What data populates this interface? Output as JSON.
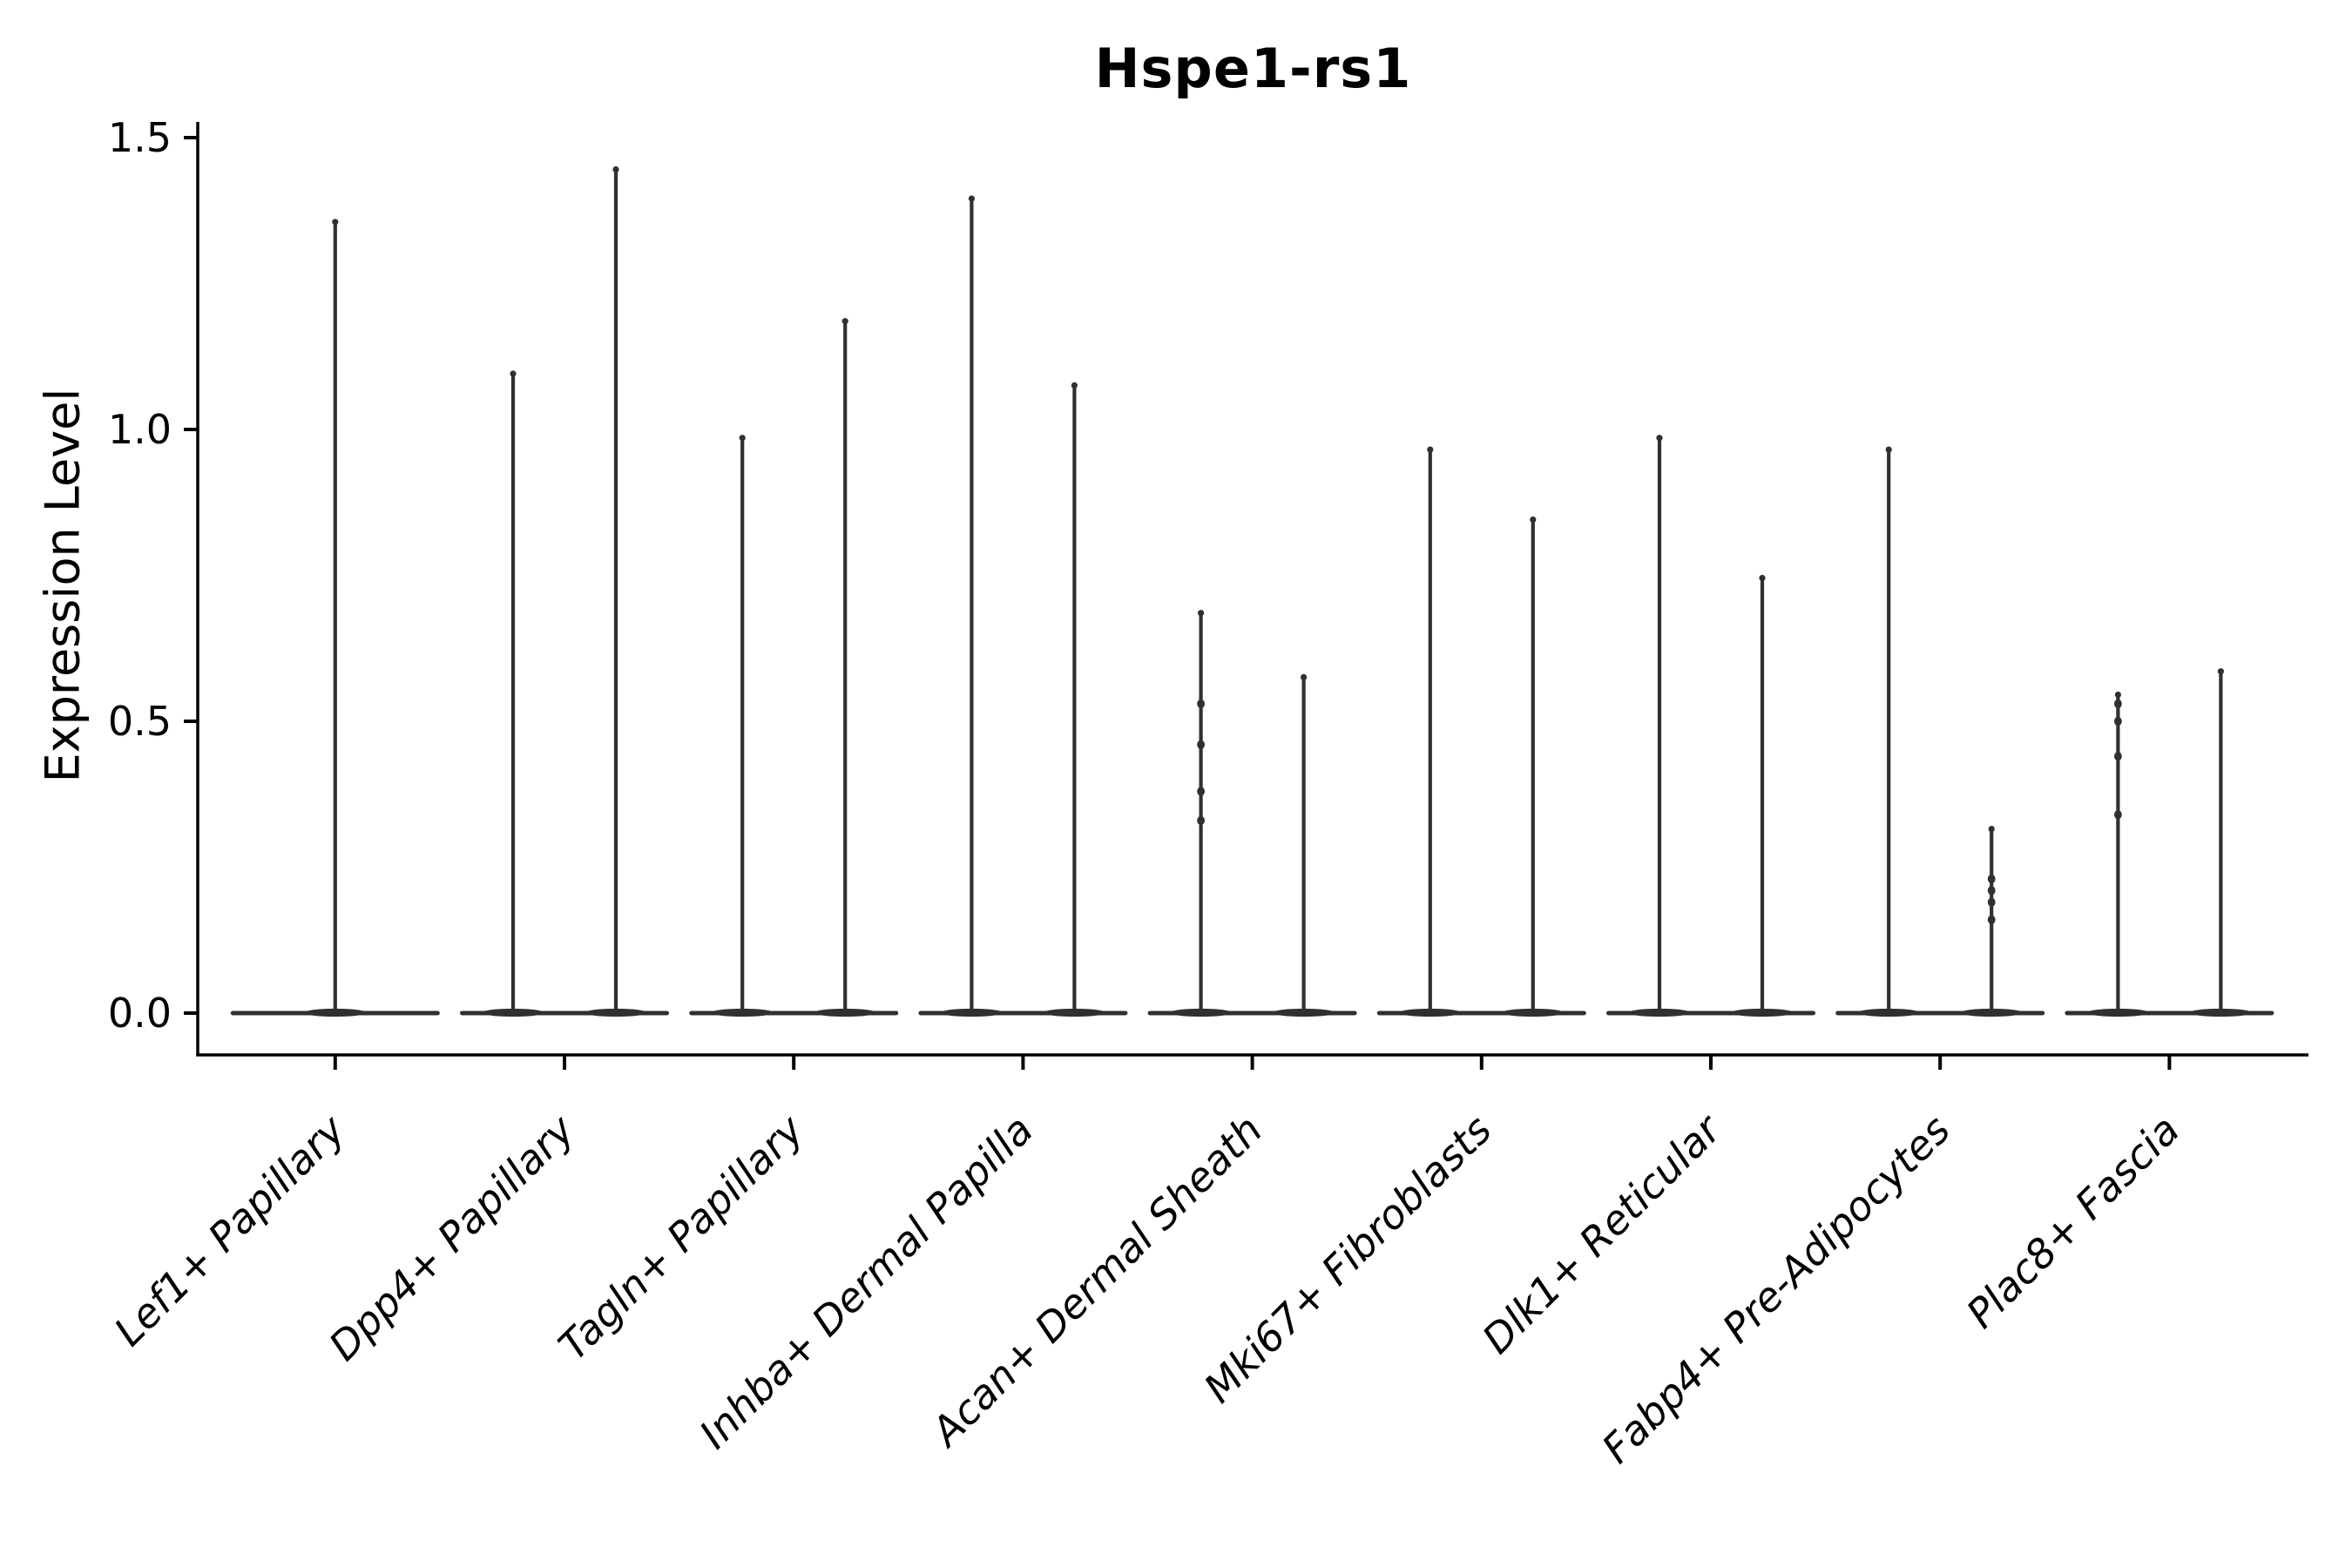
{
  "chart_data": {
    "type": "violin",
    "title": "Hspe1-rs1",
    "ylabel": "Expression Level",
    "xlabel": "",
    "ylim": [
      0,
      1.5
    ],
    "yticks": [
      "0.0",
      "0.5",
      "1.0",
      "1.5"
    ],
    "ytick_values": [
      0.0,
      0.5,
      1.0,
      1.5
    ],
    "legend": "none",
    "grid": false,
    "violin_color": "#303030",
    "axis_color": "#000000",
    "categories": [
      "Lef1+ Papillary",
      "Dpp4+ Papillary",
      "Tagln+ Papillary",
      "Inhba+ Dermal Papilla",
      "Acan+ Dermal Sheath",
      "Mki67+ Fibroblasts",
      "Dlk1+ Reticular",
      "Fabp4+ Pre-Adipocytes",
      "Plac8+ Fascia"
    ],
    "violins": [
      {
        "category": "Lef1+ Papillary",
        "spikes": [
          {
            "pos": 0,
            "max": 1.36
          }
        ]
      },
      {
        "category": "Dpp4+ Papillary",
        "spikes": [
          {
            "pos": -1,
            "max": 1.1
          },
          {
            "pos": 1,
            "max": 1.45
          }
        ]
      },
      {
        "category": "Tagln+ Papillary",
        "spikes": [
          {
            "pos": -1,
            "max": 0.99
          },
          {
            "pos": 1,
            "max": 1.19
          }
        ]
      },
      {
        "category": "Inhba+ Dermal Papilla",
        "spikes": [
          {
            "pos": -1,
            "max": 1.4
          },
          {
            "pos": 1,
            "max": 1.08
          }
        ]
      },
      {
        "category": "Acan+ Dermal Sheath",
        "spikes": [
          {
            "pos": -1,
            "max": 0.69,
            "points": [
              0.33,
              0.38,
              0.46,
              0.53
            ]
          },
          {
            "pos": 1,
            "max": 0.58
          }
        ]
      },
      {
        "category": "Mki67+ Fibroblasts",
        "spikes": [
          {
            "pos": -1,
            "max": 0.97
          },
          {
            "pos": 1,
            "max": 0.85
          }
        ]
      },
      {
        "category": "Dlk1+ Reticular",
        "spikes": [
          {
            "pos": -1,
            "max": 0.99
          },
          {
            "pos": 1,
            "max": 0.75
          }
        ]
      },
      {
        "category": "Fabp4+ Pre-Adipocytes",
        "spikes": [
          {
            "pos": -1,
            "max": 0.97
          },
          {
            "pos": 1,
            "max": 0.32,
            "points": [
              0.16,
              0.19,
              0.21,
              0.23
            ]
          }
        ]
      },
      {
        "category": "Plac8+ Fascia",
        "spikes": [
          {
            "pos": -1,
            "max": 0.55,
            "points": [
              0.34,
              0.44,
              0.5,
              0.53
            ]
          },
          {
            "pos": 1,
            "max": 0.59
          }
        ]
      }
    ]
  }
}
